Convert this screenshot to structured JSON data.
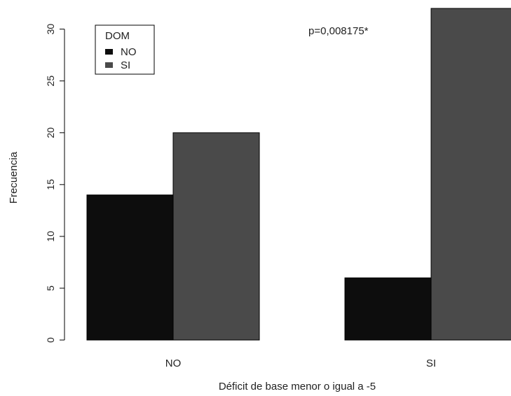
{
  "chart_data": {
    "type": "bar",
    "categories": [
      "NO",
      "SI"
    ],
    "series": [
      {
        "name": "NO",
        "values": [
          14,
          6
        ],
        "color": "#0d0d0d"
      },
      {
        "name": "SI",
        "values": [
          20,
          32
        ],
        "color": "#4a4a4a"
      }
    ],
    "xlabel": "Déficit de base menor o igual a -5",
    "ylabel": "Frecuencia",
    "ylim": [
      0,
      32
    ],
    "yticks": [
      "0",
      "5",
      "10",
      "15",
      "20",
      "25",
      "30"
    ],
    "legend": {
      "title": "DOM",
      "position": "top-left"
    },
    "annotation": "p=0,008175*",
    "grid": false
  }
}
